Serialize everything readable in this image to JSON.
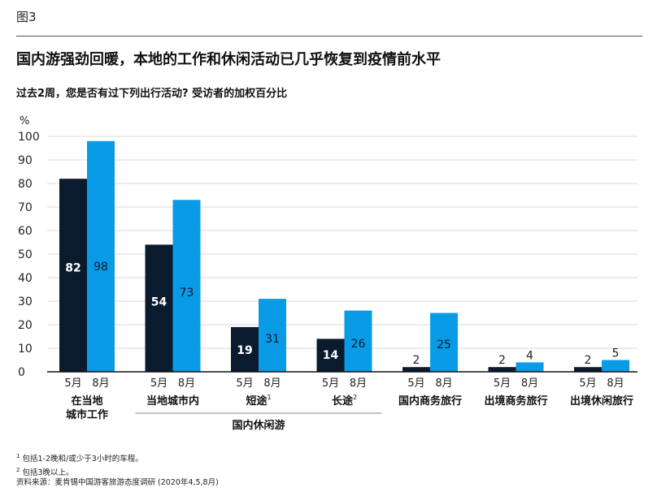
{
  "figure_label": "图3",
  "title": "国内游强劲回暖，本地的工作和休闲活动已几乎恢复到疫情前水平",
  "subtitle": "过去2周，您是否有过下列出行活动? 受访者的加权百分比",
  "colors": {
    "may": "#0b1b2e",
    "aug": "#0a9be6",
    "grid": "#d9d9d9",
    "axis": "#111111"
  },
  "chart_data": {
    "type": "bar",
    "ylabel": "%",
    "ylim": [
      0,
      100
    ],
    "yticks": [
      "0",
      "10",
      "20",
      "30",
      "40",
      "50",
      "60",
      "70",
      "80",
      "90",
      "100"
    ],
    "categories": [
      {
        "label_lines": [
          "在当地",
          "城市工作"
        ],
        "sup": ""
      },
      {
        "label_lines": [
          "当地城市内"
        ],
        "sup": ""
      },
      {
        "label_lines": [
          "短途"
        ],
        "sup": "1"
      },
      {
        "label_lines": [
          "长途"
        ],
        "sup": "2"
      },
      {
        "label_lines": [
          "国内商务旅行"
        ],
        "sup": ""
      },
      {
        "label_lines": [
          "出境商务旅行"
        ],
        "sup": ""
      },
      {
        "label_lines": [
          "出境休闲旅行"
        ],
        "sup": ""
      }
    ],
    "series": [
      {
        "name": "5月",
        "values": [
          82,
          54,
          19,
          14,
          2,
          2,
          2
        ]
      },
      {
        "name": "8月",
        "values": [
          98,
          73,
          31,
          26,
          25,
          4,
          5
        ]
      }
    ],
    "group_label": {
      "text": "国内休闲游",
      "spans": [
        1,
        3
      ]
    }
  },
  "footnotes": {
    "n1_mark": "1",
    "n1_text": "包括1-2晚和/或少于3小时的车程。",
    "n2_mark": "2",
    "n2_text": "包括3晚以上。",
    "source": "资料来源：麦肯锡中国游客旅游态度调研 (2020年4,5,8月)"
  }
}
